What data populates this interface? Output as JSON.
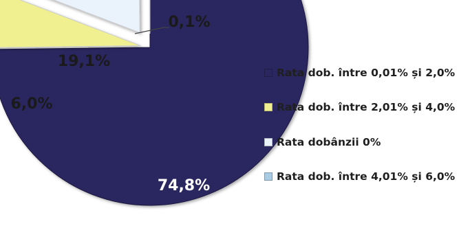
{
  "chart_data": {
    "type": "pie",
    "exploded": true,
    "labels": [
      "Rata dob. între 0,01% și 2,0%",
      "Rata dob. între 2,01% și 4,0%",
      "Rata dobânzii 0%",
      "Rata dob. între 4,01% și 6,0%"
    ],
    "values": [
      74.8,
      6.0,
      19.1,
      0.1
    ],
    "data_labels": [
      "74,8%",
      "6,0%",
      "19,1%",
      "0,1%"
    ],
    "colors": [
      "#2b275e",
      "#f0f090",
      "#eaf3fb",
      "#a9cbe3"
    ],
    "legend": "right"
  }
}
